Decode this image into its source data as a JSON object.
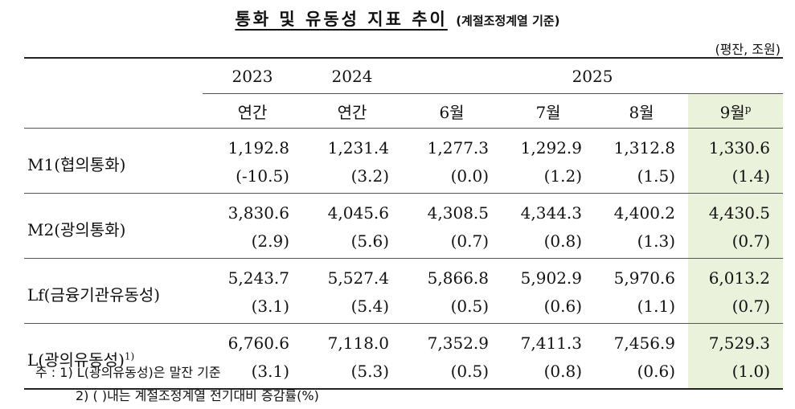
{
  "title": {
    "main": "통화 및 유동성 지표 추이",
    "sub": "(계절조정계열 기준)"
  },
  "unit": "(평잔, 조원)",
  "header": {
    "years": [
      "2023",
      "2024",
      "2025"
    ],
    "subs": [
      "연간",
      "연간",
      "6월",
      "7월",
      "8월",
      "9월"
    ],
    "last_sup": "p"
  },
  "rows": [
    {
      "label": "M1(협의통화)",
      "sup": "",
      "values": [
        "1,192.8",
        "1,231.4",
        "1,277.3",
        "1,292.9",
        "1,312.8",
        "1,330.6"
      ],
      "changes": [
        "(-10.5)",
        "(3.2)",
        "(0.0)",
        "(1.2)",
        "(1.5)",
        "(1.4)"
      ]
    },
    {
      "label": "M2(광의통화)",
      "sup": "",
      "values": [
        "3,830.6",
        "4,045.6",
        "4,308.5",
        "4,344.3",
        "4,400.2",
        "4,430.5"
      ],
      "changes": [
        "(2.9)",
        "(5.6)",
        "(0.7)",
        "(0.8)",
        "(1.3)",
        "(0.7)"
      ]
    },
    {
      "label": "Lf(금융기관유동성)",
      "sup": "",
      "values": [
        "5,243.7",
        "5,527.4",
        "5,866.8",
        "5,902.9",
        "5,970.6",
        "6,013.2"
      ],
      "changes": [
        "(3.1)",
        "(5.4)",
        "(0.5)",
        "(0.6)",
        "(1.1)",
        "(0.7)"
      ]
    },
    {
      "label": "L(광의유동성)",
      "sup": "1)",
      "values": [
        "6,760.6",
        "7,118.0",
        "7,352.9",
        "7,411.3",
        "7,456.9",
        "7,529.3"
      ],
      "changes": [
        "(3.1)",
        "(5.3)",
        "(0.5)",
        "(0.8)",
        "(0.6)",
        "(1.0)"
      ]
    }
  ],
  "notes": [
    "주 : 1) L(광의유동성)은 말잔 기준",
    "2) (    )내는 계절조정계열 전기대비 증감률(%)"
  ],
  "colors": {
    "highlight": "#eaf2dc"
  }
}
